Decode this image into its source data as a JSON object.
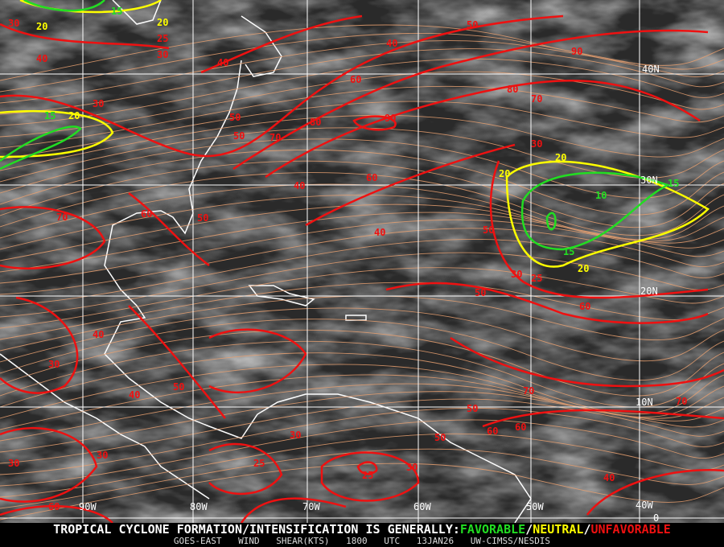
{
  "product": {
    "headline_prefix": "TROPICAL CYCLONE FORMATION/INTENSIFICATION IS GENERALLY:",
    "favorable": "FAVORABLE",
    "neutral": "NEUTRAL",
    "unfavorable": "UNFAVORABLE",
    "separator": "/",
    "source": "GOES-EAST WIND SHEAR(KTS)",
    "time": "1800 UTC",
    "date": "13JAN26",
    "credit": "UW-CIMSS/NESDIS"
  },
  "colors": {
    "favorable": "#22dd22",
    "neutral": "#ffff00",
    "unfavorable": "#ee1111",
    "streamlines": "#e8a070",
    "coastline": "#ffffff",
    "grid": "#ffffff"
  },
  "longitude_labels": [
    "90W",
    "80W",
    "70W",
    "60W",
    "50W",
    "40W"
  ],
  "latitude_labels": [
    "40N",
    "30N",
    "20N",
    "10N",
    "0"
  ],
  "contour_labels": [
    "30",
    "20",
    "15",
    "20",
    "25",
    "30",
    "40",
    "40",
    "20",
    "15",
    "30",
    "40",
    "50",
    "60",
    "50",
    "40",
    "90",
    "90",
    "80",
    "70",
    "80",
    "50",
    "30",
    "20",
    "70",
    "60",
    "70",
    "60",
    "20",
    "10",
    "15",
    "50",
    "40",
    "30",
    "25",
    "15",
    "20",
    "50",
    "60",
    "40",
    "30",
    "30",
    "50",
    "70",
    "60",
    "40",
    "70",
    "50",
    "30",
    "25",
    "30",
    "25",
    "50",
    "30",
    "60",
    "40",
    "60",
    "50"
  ]
}
